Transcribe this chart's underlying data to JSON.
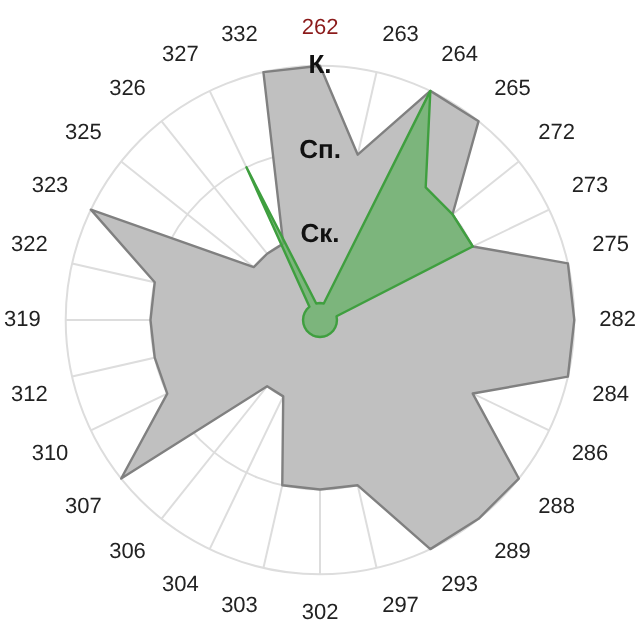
{
  "chart_data": {
    "type": "radar",
    "categories": [
      "262",
      "263",
      "264",
      "265",
      "272",
      "273",
      "275",
      "282",
      "284",
      "286",
      "288",
      "289",
      "293",
      "297",
      "302",
      "303",
      "304",
      "306",
      "307",
      "310",
      "312",
      "319",
      "322",
      "323",
      "325",
      "326",
      "327",
      "332"
    ],
    "series": [
      {
        "color": "#808080",
        "values": [
          3,
          2,
          3,
          3,
          2,
          2,
          3,
          3,
          3,
          2,
          3,
          3,
          3,
          2,
          2,
          2,
          1,
          1,
          3,
          2,
          2,
          2,
          2,
          3,
          1,
          1,
          1,
          3
        ]
      },
      {
        "color": "#3f9f3f",
        "values": [
          0.2,
          0.2,
          3,
          2,
          2,
          2,
          0.2,
          0.2,
          0.2,
          0.2,
          0.2,
          0.2,
          0.2,
          0.2,
          0.2,
          0.2,
          0.2,
          0.2,
          0.2,
          0.2,
          0.2,
          0.2,
          0.2,
          0.2,
          0.2,
          0.2,
          2,
          0.2
        ]
      }
    ],
    "ylim": [
      0,
      3
    ],
    "yticks": [
      {
        "value": 1,
        "label": "Ск."
      },
      {
        "value": 2,
        "label": "Сп."
      },
      {
        "value": 3,
        "label": "К."
      }
    ],
    "grid": true,
    "marker": "none"
  }
}
